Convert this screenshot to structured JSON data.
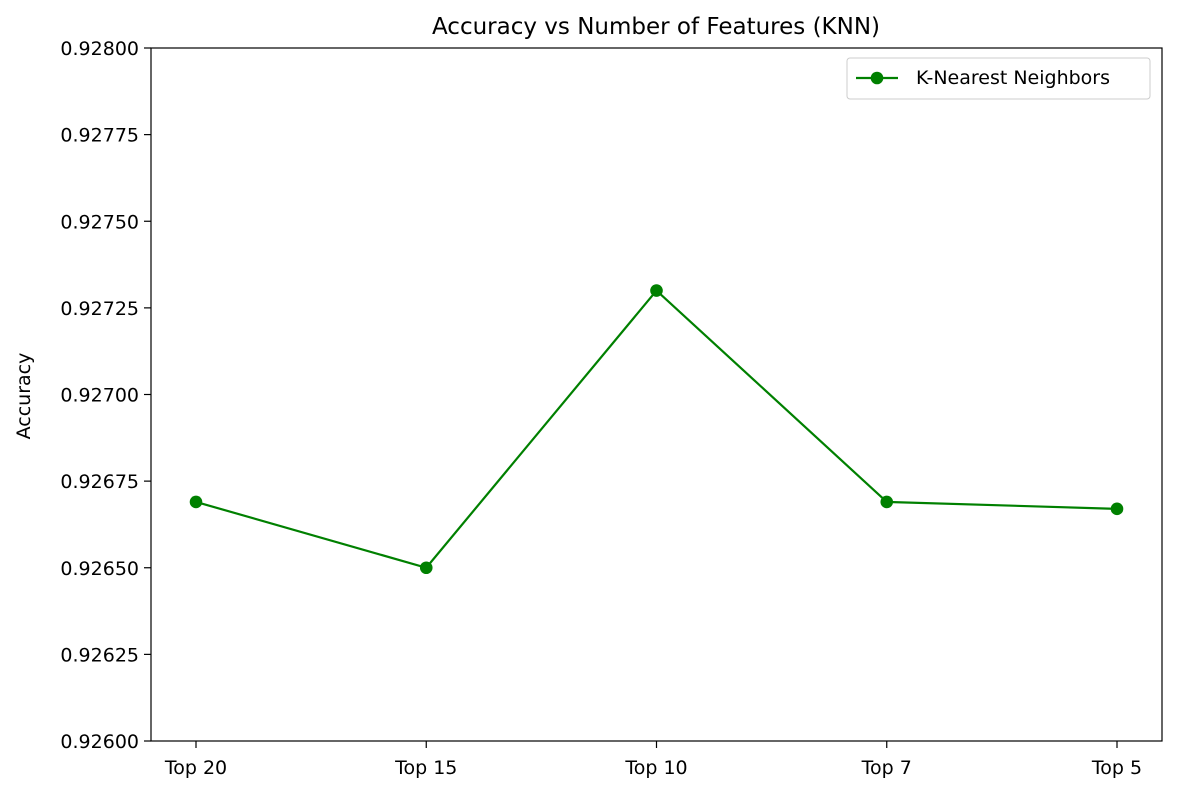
{
  "chart_data": {
    "type": "line",
    "title": "Accuracy vs Number of Features (KNN)",
    "xlabel": "",
    "ylabel": "Accuracy",
    "categories": [
      "Top 20",
      "Top 15",
      "Top 10",
      "Top 7",
      "Top 5"
    ],
    "series": [
      {
        "name": "K-Nearest Neighbors",
        "values": [
          0.92669,
          0.9265,
          0.9273,
          0.92669,
          0.92667
        ],
        "color": "#008000",
        "marker": "circle"
      }
    ],
    "ylim": [
      0.926,
      0.928
    ],
    "yticks": [
      0.926,
      0.92625,
      0.9265,
      0.92675,
      0.927,
      0.92725,
      0.9275,
      0.92775,
      0.928
    ],
    "ytick_labels": [
      "0.92600",
      "0.92625",
      "0.92650",
      "0.92675",
      "0.92700",
      "0.92725",
      "0.92750",
      "0.92775",
      "0.92800"
    ],
    "grid": false,
    "legend_position": "top-right"
  }
}
